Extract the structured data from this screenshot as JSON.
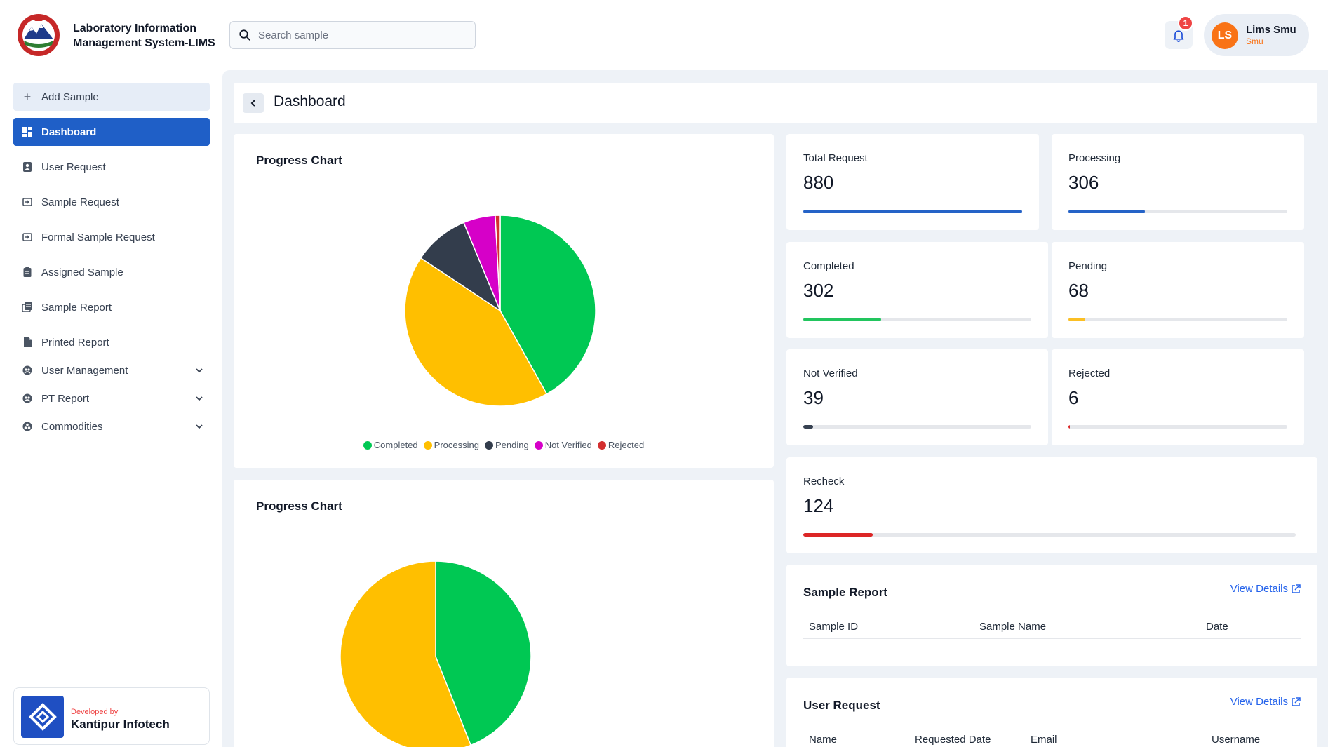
{
  "app": {
    "title_line1": "Laboratory Information",
    "title_line2": "Management System-LIMS"
  },
  "search": {
    "placeholder": "Search sample"
  },
  "notifications": {
    "count": "1"
  },
  "user": {
    "initials": "LS",
    "name": "Lims Smu",
    "role": "Smu"
  },
  "sidebar": {
    "add_label": "Add Sample",
    "items": [
      {
        "label": "Dashboard",
        "icon": "dashboard-icon",
        "active": true
      },
      {
        "label": "User Request",
        "icon": "user-request-icon"
      },
      {
        "label": "Sample Request",
        "icon": "sample-request-icon"
      },
      {
        "label": "Formal Sample Request",
        "icon": "formal-request-icon"
      },
      {
        "label": "Assigned Sample",
        "icon": "assigned-sample-icon"
      },
      {
        "label": "Sample Report",
        "icon": "sample-report-icon"
      },
      {
        "label": "Printed Report",
        "icon": "printed-report-icon"
      },
      {
        "label": "User Management",
        "icon": "user-management-icon",
        "expandable": true
      },
      {
        "label": "PT Report",
        "icon": "pt-report-icon",
        "expandable": true
      },
      {
        "label": "Commodities",
        "icon": "commodities-icon",
        "expandable": true
      }
    ]
  },
  "developer": {
    "by": "Developed by",
    "name": "Kantipur Infotech"
  },
  "page": {
    "title": "Dashboard"
  },
  "chart_data": [
    {
      "type": "pie",
      "title": "Progress Chart",
      "categories": [
        "Completed",
        "Processing",
        "Pending",
        "Not Verified",
        "Rejected"
      ],
      "values": [
        302,
        306,
        68,
        39,
        6
      ],
      "colors": [
        "#00c853",
        "#ffbf00",
        "#333d4c",
        "#d600c8",
        "#d32f2f"
      ]
    },
    {
      "type": "pie",
      "title": "Progress Chart",
      "values": [
        44,
        56
      ],
      "colors": [
        "#00c853",
        "#ffbf00"
      ]
    }
  ],
  "stats": {
    "total": {
      "label": "Total Request",
      "value": "880",
      "fraction": 1.0,
      "color": "#2563c7"
    },
    "processing": {
      "label": "Processing",
      "value": "306",
      "fraction": 0.348,
      "color": "#2563c7"
    },
    "completed": {
      "label": "Completed",
      "value": "302",
      "fraction": 0.343,
      "color": "#22c55e"
    },
    "pending": {
      "label": "Pending",
      "value": "68",
      "fraction": 0.077,
      "color": "#fbbf24"
    },
    "not_verified": {
      "label": "Not Verified",
      "value": "39",
      "fraction": 0.044,
      "color": "#374151"
    },
    "rejected": {
      "label": "Rejected",
      "value": "6",
      "fraction": 0.007,
      "color": "#dc2626"
    },
    "recheck": {
      "label": "Recheck",
      "value": "124",
      "fraction": 0.141,
      "color": "#dc2626"
    }
  },
  "sample_report": {
    "title": "Sample Report",
    "link": "View Details",
    "columns": [
      "Sample ID",
      "Sample Name",
      "Date"
    ]
  },
  "user_request": {
    "title": "User Request",
    "link": "View Details",
    "columns": [
      "Name",
      "Requested Date",
      "Email",
      "Username"
    ]
  }
}
